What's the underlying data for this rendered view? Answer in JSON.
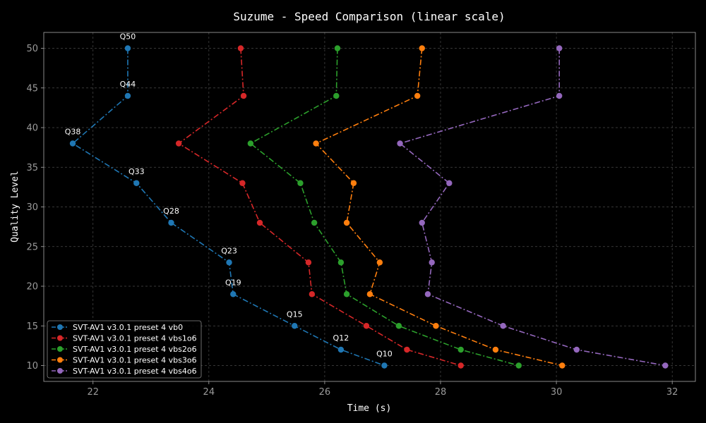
{
  "chart_data": {
    "type": "line",
    "title": "Suzume - Speed Comparison (linear scale)",
    "xlabel": "Time (s)",
    "ylabel": "Quality Level",
    "xlim": [
      21.15,
      32.4
    ],
    "ylim": [
      8.0,
      52.0
    ],
    "xticks": [
      22,
      24,
      26,
      28,
      30,
      32
    ],
    "yticks": [
      10,
      15,
      20,
      25,
      30,
      35,
      40,
      45,
      50
    ],
    "grid": true,
    "legend_position": "lower-left",
    "y": [
      50,
      44,
      38,
      33,
      28,
      23,
      19,
      15,
      12,
      10
    ],
    "annotations": [
      "Q50",
      "Q44",
      "Q38",
      "Q33",
      "Q28",
      "Q23",
      "Q19",
      "Q15",
      "Q12",
      "Q10"
    ],
    "series": [
      {
        "name": "SVT-AV1 v3.0.1 preset 4 vb0",
        "color": "#1f77b4",
        "x": [
          22.6,
          22.6,
          21.65,
          22.75,
          23.35,
          24.35,
          24.42,
          25.48,
          26.28,
          27.03
        ]
      },
      {
        "name": "SVT-AV1 v3.0.1 preset 4 vbs1o6",
        "color": "#d62728",
        "x": [
          24.55,
          24.6,
          23.48,
          24.58,
          24.88,
          25.72,
          25.78,
          26.72,
          27.42,
          28.35
        ]
      },
      {
        "name": "SVT-AV1 v3.0.1 preset 4 vbs2o6",
        "color": "#2ca02c",
        "x": [
          26.22,
          26.2,
          24.72,
          25.58,
          25.82,
          26.28,
          26.38,
          27.28,
          28.35,
          29.35
        ]
      },
      {
        "name": "SVT-AV1 v3.0.1 preset 4 vbs3o6",
        "color": "#ff7f0e",
        "x": [
          27.68,
          27.6,
          25.85,
          26.5,
          26.38,
          26.95,
          26.78,
          27.92,
          28.95,
          30.1
        ]
      },
      {
        "name": "SVT-AV1 v3.0.1 preset 4 vbs4o6",
        "color": "#9467bd",
        "x": [
          30.05,
          30.05,
          27.3,
          28.15,
          27.68,
          27.85,
          27.78,
          29.08,
          30.35,
          31.88
        ]
      }
    ]
  }
}
